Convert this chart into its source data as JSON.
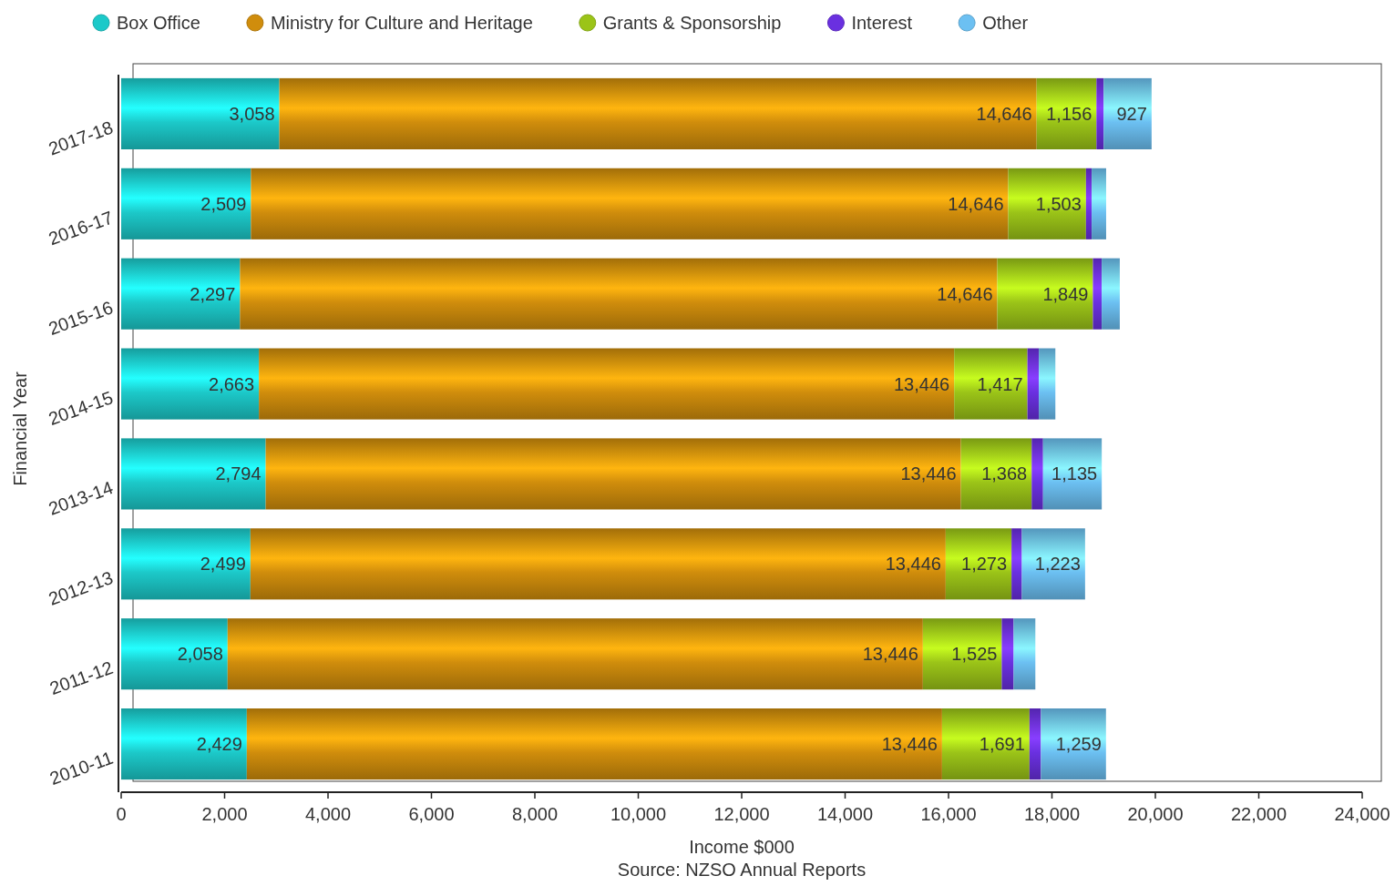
{
  "chart_data": {
    "type": "bar",
    "orientation": "horizontal",
    "stacked": true,
    "categories": [
      "2017-18",
      "2016-17",
      "2015-16",
      "2014-15",
      "2013-14",
      "2012-13",
      "2011-12",
      "2010-11"
    ],
    "series": [
      {
        "name": "Box Office",
        "color": "#1cc9c9",
        "values": [
          3058,
          2509,
          2297,
          2663,
          2794,
          2499,
          2058,
          2429
        ],
        "value_labels": [
          "3,058",
          "2,509",
          "2,297",
          "2,663",
          "2,794",
          "2,499",
          "2,058",
          "2,429"
        ]
      },
      {
        "name": "Ministry for Culture and Heritage",
        "color": "#d08d0c",
        "values": [
          14646,
          14646,
          14646,
          13446,
          13446,
          13446,
          13446,
          13446
        ],
        "value_labels": [
          "14,646",
          "14,646",
          "14,646",
          "13,446",
          "13,446",
          "13,446",
          "13,446",
          "13,446"
        ]
      },
      {
        "name": "Grants & Sponsorship",
        "color": "#9bc418",
        "values": [
          1156,
          1503,
          1849,
          1417,
          1368,
          1273,
          1525,
          1691
        ],
        "value_labels": [
          "1,156",
          "1,503",
          "1,849",
          "1,417",
          "1,368",
          "1,273",
          "1,525",
          "1,691"
        ]
      },
      {
        "name": "Interest",
        "color": "#6a30e0",
        "values": [
          140,
          110,
          170,
          220,
          220,
          200,
          230,
          220
        ]
      },
      {
        "name": "Other",
        "color": "#6cc0f2",
        "values": [
          927,
          280,
          350,
          320,
          1135,
          1223,
          420,
          1259
        ],
        "value_labels": [
          "927",
          null,
          null,
          null,
          "1,135",
          "1,223",
          null,
          "1,259"
        ]
      }
    ],
    "xlabel": "Income $000",
    "ylabel": "Financial Year",
    "annotations": [
      "Source: NZSO Annual Reports"
    ],
    "xlim": [
      0,
      24000
    ],
    "xticks": [
      0,
      {
        "value": 2000,
        "label": "2,000"
      },
      {
        "value": 4000,
        "label": "4,000"
      },
      {
        "value": 6000,
        "label": "6,000"
      },
      {
        "value": 8000,
        "label": "8,000"
      },
      {
        "value": 10000,
        "label": "10,000"
      },
      {
        "value": 12000,
        "label": "12,000"
      },
      {
        "value": 14000,
        "label": "14,000"
      },
      {
        "value": 16000,
        "label": "16,000"
      },
      {
        "value": 18000,
        "label": "18,000"
      },
      {
        "value": 20000,
        "label": "20,000"
      },
      {
        "value": 22000,
        "label": "22,000"
      },
      {
        "value": 24000,
        "label": "24,000"
      }
    ],
    "legend": "top"
  }
}
